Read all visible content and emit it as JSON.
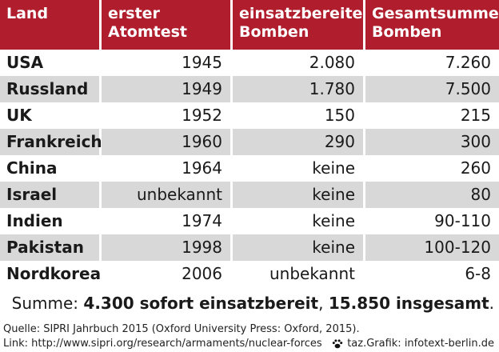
{
  "chart_data": {
    "type": "table",
    "columns": [
      "Land",
      "erster Atomtest",
      "einsatzbereite Bomben",
      "Gesamtsumme Bomben"
    ],
    "columns_display": [
      [
        "Land"
      ],
      [
        "erster Atomtest"
      ],
      [
        "einsatzbereite",
        "Bomben"
      ],
      [
        "Gesamtsumme",
        "Bomben"
      ]
    ],
    "rows": [
      [
        "USA",
        "1945",
        "2.080",
        "7.260"
      ],
      [
        "Russland",
        "1949",
        "1.780",
        "7.500"
      ],
      [
        "UK",
        "1952",
        "150",
        "215"
      ],
      [
        "Frankreich",
        "1960",
        "290",
        "300"
      ],
      [
        "China",
        "1964",
        "keine",
        "260"
      ],
      [
        "Israel",
        "unbekannt",
        "keine",
        "80"
      ],
      [
        "Indien",
        "1974",
        "keine",
        "90-110"
      ],
      [
        "Pakistan",
        "1998",
        "keine",
        "100-120"
      ],
      [
        "Nordkorea",
        "2006",
        "unbekannt",
        "6-8"
      ]
    ]
  },
  "summary": {
    "prefix": "Summe: ",
    "ready": "4.300 sofort einsatzbereit",
    "sep": ", ",
    "total": "15.850 insgesamt",
    "suffix": "."
  },
  "footer": {
    "source": "Quelle: SIPRI Jahrbuch 2015 (Oxford University Press: Oxford, 2015).",
    "link": "Link: http://www.sipri.org/research/armaments/nuclear-forces",
    "credit": "taz.Grafik: infotext-berlin.de",
    "credit_icon": "paw-icon"
  },
  "colors": {
    "header_bg": "#b01e2d",
    "header_text": "#ffffff",
    "row_shade": "#d8d8d8"
  }
}
